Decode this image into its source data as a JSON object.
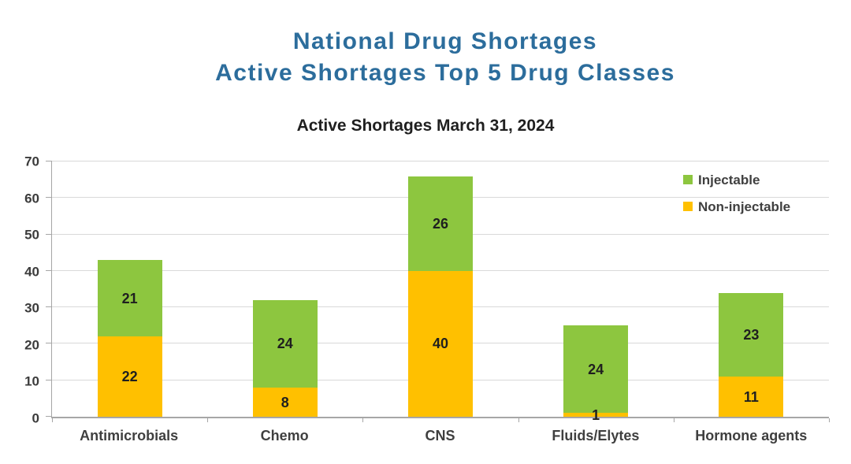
{
  "page": {
    "background": "#FFFFFF"
  },
  "header": {
    "title_line1": "National Drug Shortages",
    "title_line2": "Active Shortages Top 5 Drug Classes",
    "title_color": "#2C6D9C"
  },
  "chart_data": {
    "type": "bar",
    "stacked": true,
    "title": "Active Shortages March 31, 2024",
    "categories": [
      "Antimicrobials",
      "Chemo",
      "CNS",
      "Fluids/Elytes",
      "Hormone agents"
    ],
    "series": [
      {
        "name": "Non-injectable",
        "color": "#FFC000",
        "values": [
          22,
          8,
          40,
          1,
          11
        ]
      },
      {
        "name": "Injectable",
        "color": "#8DC63F",
        "values": [
          21,
          24,
          26,
          24,
          23
        ]
      }
    ],
    "totals": [
      43,
      32,
      66,
      25,
      34
    ],
    "xlabel": "",
    "ylabel": "",
    "ylim": [
      0,
      70
    ],
    "yticks": [
      0,
      10,
      20,
      30,
      40,
      50,
      60,
      70
    ],
    "grid": "horizontal-major",
    "gridline_color": "#D9D9D9",
    "axis_color": "#A6A6A6",
    "value_label_color": "#1F1F1F",
    "legend": {
      "position": "top-right",
      "items": [
        {
          "label": "Injectable",
          "color": "#8DC63F"
        },
        {
          "label": "Non-injectable",
          "color": "#FFC000"
        }
      ]
    }
  }
}
